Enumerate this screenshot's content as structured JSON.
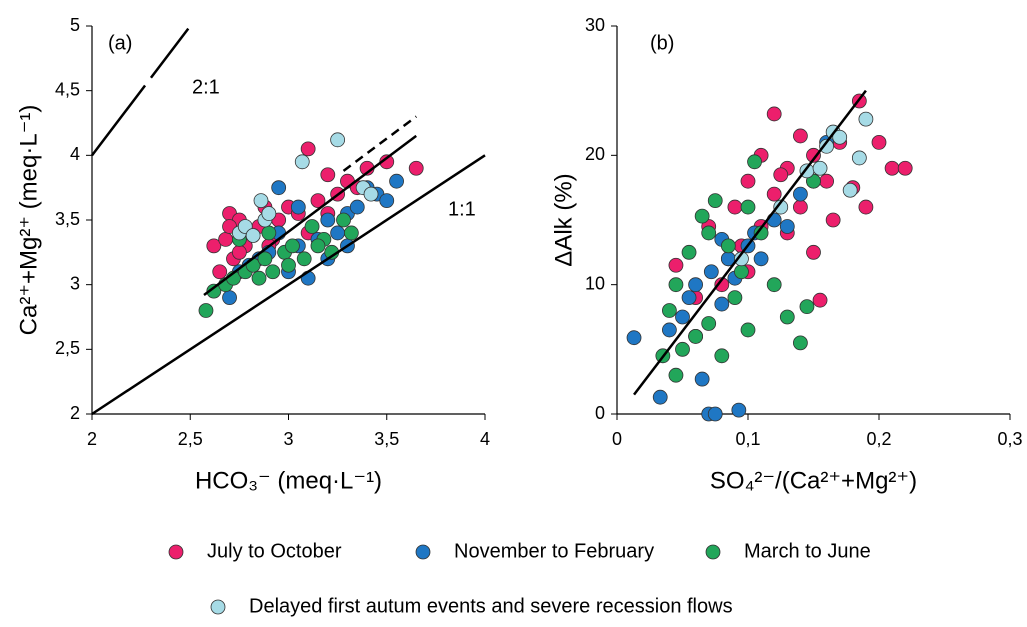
{
  "chart_data": [
    {
      "type": "scatter",
      "panel": "(a)",
      "x_label": "HCO₃⁻ (meq·L⁻¹)",
      "y_label": "Ca²⁺+Mg²⁺ (meq·L⁻¹)",
      "annotations": [
        "2:1",
        "1:1"
      ],
      "xlim": [
        2,
        4
      ],
      "ylim": [
        2,
        5
      ],
      "xticks": [
        2,
        {
          "value": 2.5,
          "label": "2,5"
        },
        3,
        {
          "value": 3.5,
          "label": "3,5"
        },
        4
      ],
      "yticks": [
        2,
        {
          "value": 2.5,
          "label": "2,5"
        },
        3,
        {
          "value": 3.5,
          "label": "3,5"
        },
        4,
        {
          "value": 4.5,
          "label": "4,5"
        },
        5
      ],
      "series": [
        {
          "name": "July to October",
          "color": "#ec1f6c",
          "x": [
            2.62,
            2.65,
            2.68,
            2.7,
            2.72,
            2.75,
            2.78,
            2.8,
            2.85,
            2.88,
            2.92,
            2.95,
            3.0,
            3.05,
            3.1,
            3.15,
            3.2,
            3.25,
            3.3,
            3.35,
            3.4,
            3.5,
            3.65,
            3.1,
            2.7,
            2.75,
            2.9,
            3.2
          ],
          "y": [
            3.3,
            3.1,
            3.35,
            3.55,
            3.2,
            3.5,
            3.3,
            3.4,
            3.45,
            3.6,
            3.35,
            3.5,
            3.6,
            3.55,
            4.05,
            3.65,
            3.85,
            3.7,
            3.8,
            3.75,
            3.9,
            3.95,
            3.9,
            3.4,
            3.45,
            3.25,
            3.3,
            3.55
          ]
        },
        {
          "name": "November to February",
          "color": "#1f77c4",
          "x": [
            2.7,
            2.75,
            2.8,
            2.85,
            2.9,
            2.95,
            3.0,
            3.05,
            3.1,
            3.15,
            3.2,
            3.25,
            3.3,
            3.35,
            3.4,
            3.45,
            3.5,
            3.55,
            3.05,
            3.2,
            2.95,
            3.3
          ],
          "y": [
            2.9,
            3.1,
            3.15,
            3.2,
            3.25,
            3.75,
            3.1,
            3.3,
            3.05,
            3.35,
            3.5,
            3.4,
            3.55,
            3.6,
            3.75,
            3.7,
            3.65,
            3.8,
            3.6,
            3.2,
            3.4,
            3.3
          ]
        },
        {
          "name": "March to June",
          "color": "#22a65a",
          "x": [
            2.58,
            2.62,
            2.68,
            2.72,
            2.78,
            2.82,
            2.88,
            2.92,
            2.98,
            3.02,
            3.08,
            3.12,
            3.18,
            3.22,
            3.28,
            3.32,
            2.75,
            2.85,
            3.0,
            3.15,
            2.9
          ],
          "y": [
            2.8,
            2.95,
            3.0,
            3.05,
            3.1,
            3.15,
            3.2,
            3.1,
            3.25,
            3.3,
            3.2,
            3.45,
            3.35,
            3.25,
            3.5,
            3.4,
            3.35,
            3.05,
            3.15,
            3.3,
            3.4
          ]
        },
        {
          "name": "Delayed first autum events and severe recession flows",
          "color": "#a6dbe6",
          "x": [
            2.75,
            2.78,
            2.82,
            2.86,
            2.88,
            2.9,
            3.07,
            3.25,
            3.38,
            3.42
          ],
          "y": [
            3.4,
            3.45,
            3.38,
            3.65,
            3.5,
            3.55,
            3.95,
            4.12,
            3.75,
            3.7
          ]
        }
      ],
      "lines": [
        {
          "x": [
            2,
            4
          ],
          "y": [
            2,
            4
          ]
        },
        {
          "x": [
            2,
            2.27,
            null,
            2.3,
            2.49
          ],
          "y": [
            4,
            4.54,
            null,
            4.6,
            4.98
          ]
        },
        {
          "x": [
            2.57,
            3.65
          ],
          "y": [
            2.92,
            4.15
          ]
        },
        {
          "x": [
            3.28,
            3.65
          ],
          "y": [
            3.88,
            4.3
          ],
          "dashed": true
        }
      ]
    },
    {
      "type": "scatter",
      "panel": "(b)",
      "x_label": "SO₄²⁻/(Ca²⁺+Mg²⁺)",
      "y_label": "ΔAlk (%)",
      "xlim": [
        0,
        0.3
      ],
      "ylim": [
        0,
        30
      ],
      "xticks": [
        0,
        {
          "value": 0.1,
          "label": "0,1"
        },
        {
          "value": 0.2,
          "label": "0,2"
        },
        {
          "value": 0.3,
          "label": "0,3"
        }
      ],
      "yticks": [
        0,
        10,
        20,
        30
      ],
      "series": [
        {
          "x": [
            0.045,
            0.06,
            0.07,
            0.08,
            0.085,
            0.09,
            0.1,
            0.1,
            0.11,
            0.12,
            0.12,
            0.13,
            0.13,
            0.14,
            0.14,
            0.15,
            0.15,
            0.155,
            0.16,
            0.165,
            0.17,
            0.18,
            0.185,
            0.19,
            0.2,
            0.21,
            0.22,
            0.095,
            0.11,
            0.125
          ],
          "y": [
            11.5,
            9,
            14.5,
            10,
            12,
            16,
            11,
            18,
            14.5,
            23.2,
            17,
            19,
            14,
            21.5,
            16,
            20,
            12.5,
            8.8,
            18,
            15,
            21,
            17.5,
            24.2,
            16,
            21,
            19,
            19,
            13,
            20,
            18.5
          ]
        },
        {
          "x": [
            0.013,
            0.033,
            0.04,
            0.05,
            0.055,
            0.06,
            0.065,
            0.07,
            0.072,
            0.075,
            0.08,
            0.085,
            0.09,
            0.093,
            0.1,
            0.105,
            0.11,
            0.12,
            0.13,
            0.14,
            0.15,
            0.16,
            0.06,
            0.08
          ],
          "y": [
            5.9,
            1.3,
            6.5,
            7.5,
            9,
            10,
            2.7,
            0,
            11,
            0,
            8.5,
            12,
            10.5,
            0.3,
            13,
            14,
            12,
            15,
            14.5,
            17,
            18,
            21,
            6,
            13.5
          ]
        },
        {
          "x": [
            0.035,
            0.04,
            0.045,
            0.05,
            0.055,
            0.06,
            0.065,
            0.07,
            0.075,
            0.08,
            0.085,
            0.09,
            0.095,
            0.1,
            0.105,
            0.11,
            0.12,
            0.13,
            0.14,
            0.145,
            0.15,
            0.045,
            0.07,
            0.1
          ],
          "y": [
            4.5,
            8,
            3,
            5,
            12.5,
            6,
            15.3,
            7,
            16.5,
            4.5,
            13,
            9,
            11,
            16,
            19.5,
            14,
            10,
            7.5,
            5.5,
            8.3,
            18,
            10,
            14,
            6.5
          ]
        },
        {
          "x": [
            0.095,
            0.125,
            0.145,
            0.155,
            0.16,
            0.165,
            0.17,
            0.178,
            0.185,
            0.19
          ],
          "y": [
            12,
            16,
            18.8,
            19,
            20.7,
            21.8,
            21.4,
            17.3,
            19.8,
            22.8
          ]
        }
      ],
      "lines": [
        {
          "x": [
            0.013,
            0.19
          ],
          "y": [
            1.5,
            25
          ]
        }
      ]
    }
  ]
}
